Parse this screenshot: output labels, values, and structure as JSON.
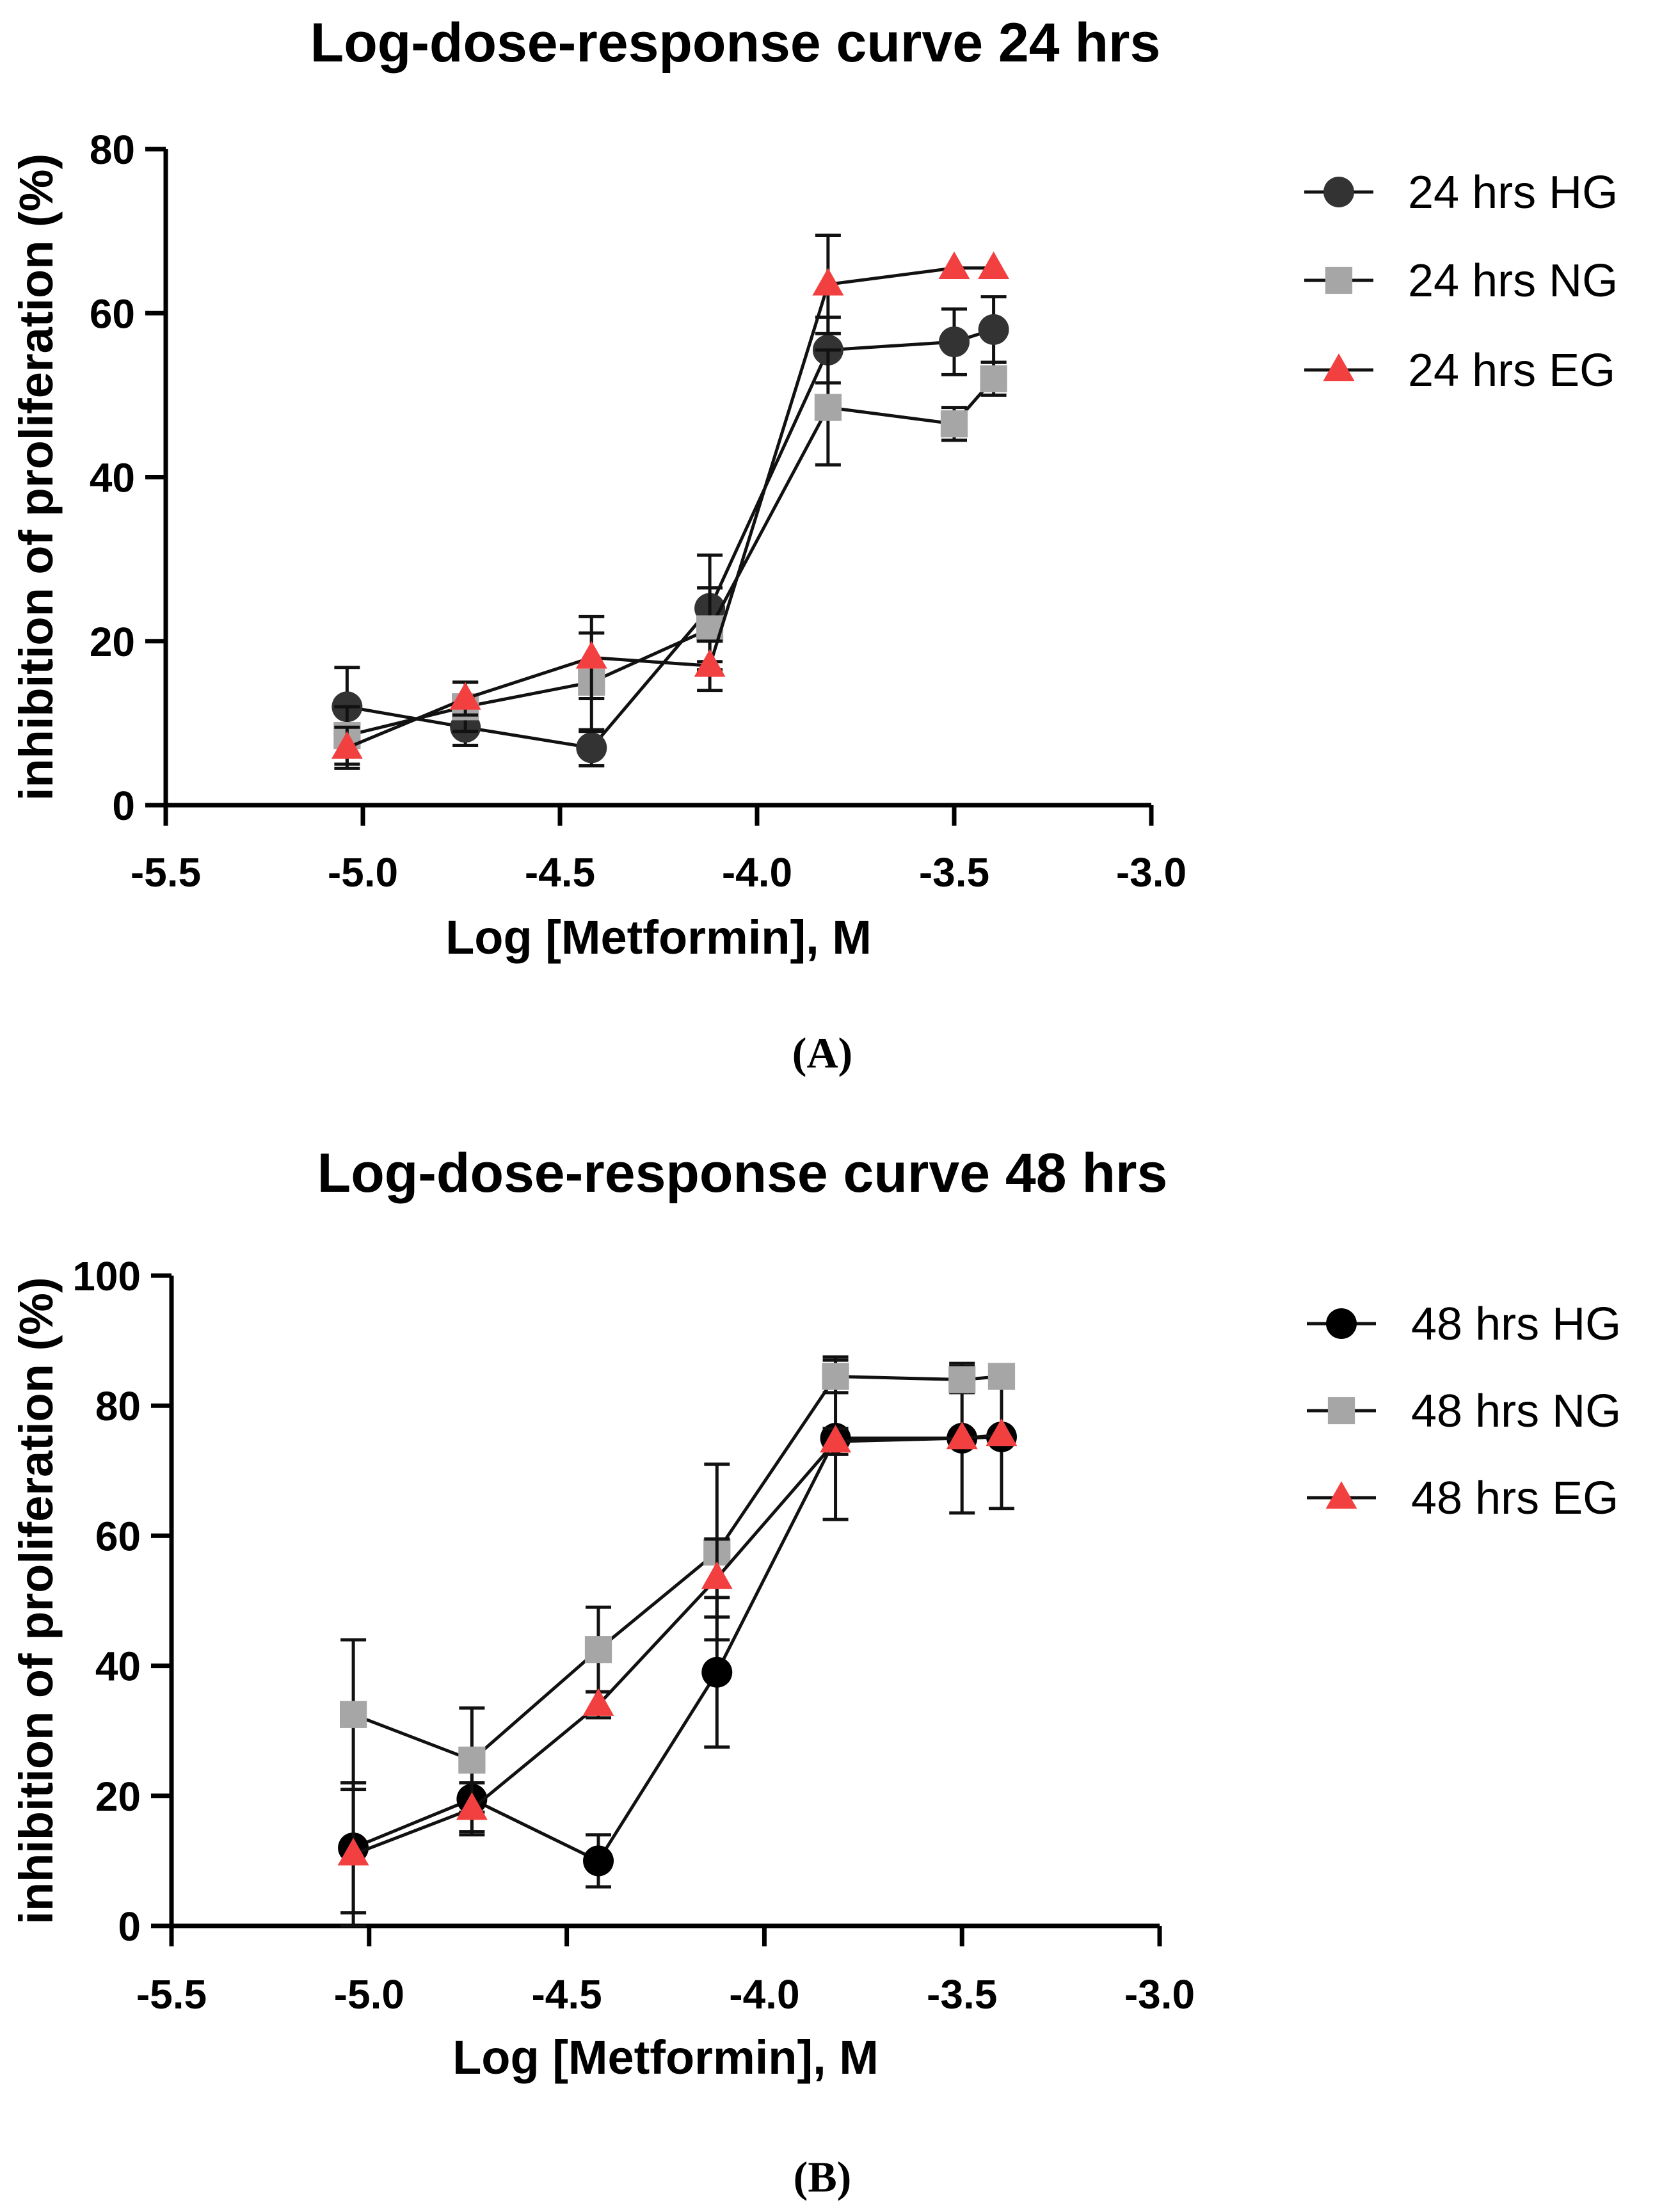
{
  "chart_data": [
    {
      "type": "line",
      "title": "Log-dose-response curve 24 hrs",
      "xlabel": "Log [Metformin], M",
      "ylabel": "inhibition of proliferation (%)",
      "xlim": [
        -5.5,
        -3.0
      ],
      "ylim": [
        0,
        80
      ],
      "xticks": [
        -5.5,
        -5.0,
        -4.5,
        -4.0,
        -3.5,
        -3.0
      ],
      "xtick_labels": [
        "-5.5",
        "-5.0",
        "-4.5",
        "-4.0",
        "-3.5",
        "-3.0"
      ],
      "yticks": [
        0,
        20,
        40,
        60,
        80
      ],
      "ytick_labels": [
        "0",
        "20",
        "40",
        "60",
        "80"
      ],
      "panel_label": "(A)",
      "legend_position": "right",
      "grid": false,
      "x": [
        -5.04,
        -4.74,
        -4.42,
        -4.12,
        -3.82,
        -3.5,
        -3.4
      ],
      "series": [
        {
          "name": "24 hrs HG",
          "marker": "circle",
          "color": "#333333",
          "values": [
            12,
            9.5,
            7,
            24,
            55.5,
            56.5,
            58
          ],
          "errors": [
            4.8,
            2.2,
            2.2,
            6.5,
            4,
            4,
            4
          ]
        },
        {
          "name": "24 hrs NG",
          "marker": "square",
          "color": "#a6a6a6",
          "values": [
            8.5,
            12,
            15,
            21.5,
            48.5,
            46.5,
            52
          ],
          "errors": [
            3.5,
            3,
            6,
            5,
            7,
            2,
            2
          ]
        },
        {
          "name": "24 hrs EG",
          "marker": "triangle",
          "color": "#f24040",
          "values": [
            7,
            13,
            18,
            17,
            63.5,
            65.5,
            65.5
          ],
          "errors": [
            2.5,
            2,
            5,
            3,
            6,
            0,
            0
          ]
        }
      ]
    },
    {
      "type": "line",
      "title": "Log-dose-response curve 48 hrs",
      "xlabel": "Log [Metformin], M",
      "ylabel": "inhibition of proliferation (%)",
      "xlim": [
        -5.5,
        -3.0
      ],
      "ylim": [
        0,
        100
      ],
      "xticks": [
        -5.5,
        -5.0,
        -4.5,
        -4.0,
        -3.5,
        -3.0
      ],
      "xtick_labels": [
        "-5.5",
        "-5.0",
        "-4.5",
        "-4.0",
        "-3.5",
        "-3.0"
      ],
      "yticks": [
        0,
        20,
        40,
        60,
        80,
        100
      ],
      "ytick_labels": [
        "0",
        "20",
        "40",
        "60",
        "80",
        "100"
      ],
      "panel_label": "(B)",
      "legend_position": "right",
      "grid": false,
      "x": [
        -5.04,
        -4.74,
        -4.42,
        -4.12,
        -3.82,
        -3.5,
        -3.4
      ],
      "series": [
        {
          "name": "48 hrs HG",
          "marker": "circle",
          "color": "#000000",
          "values": [
            12,
            19.5,
            10,
            39,
            75,
            75,
            75.2
          ],
          "errors": [
            10,
            5,
            4,
            11.5,
            12.5,
            11.5,
            11
          ]
        },
        {
          "name": "48 hrs NG",
          "marker": "square",
          "color": "#a6a6a6",
          "values": [
            32.5,
            25.5,
            42.5,
            57.5,
            84.5,
            84,
            84.5
          ],
          "errors": [
            11.5,
            8,
            6.5,
            13.5,
            2.5,
            2,
            1.5
          ]
        },
        {
          "name": "48 hrs EG",
          "marker": "triangle",
          "color": "#f24040",
          "values": [
            11,
            18,
            34,
            53.5,
            74.5,
            75,
            75.5
          ],
          "errors": [
            11,
            4,
            2,
            6,
            2,
            0,
            0
          ]
        }
      ]
    }
  ]
}
